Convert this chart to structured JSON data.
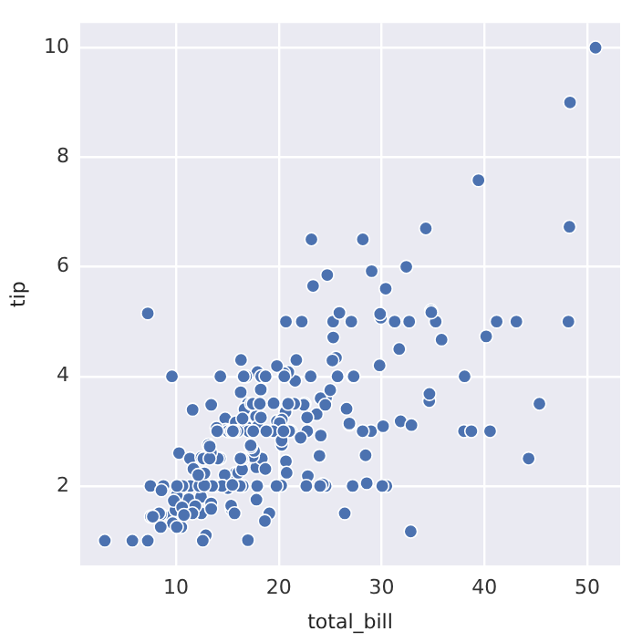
{
  "chart_data": {
    "type": "scatter",
    "xlabel": "total_bill",
    "ylabel": "tip",
    "marker": "circle",
    "grid": true,
    "legend": false,
    "xlim": [
      0.68,
      53.2
    ],
    "xticks": [
      10,
      20,
      30,
      40,
      50
    ],
    "ylim": [
      0.55,
      10.45
    ],
    "yticks": [
      2,
      4,
      6,
      8,
      10
    ],
    "series": [
      {
        "color": "#4c72b0",
        "x": [
          16.99,
          23.68,
          24.59,
          25.29,
          8.77,
          26.88,
          15.04,
          14.78,
          35.26,
          15.42,
          14.83,
          21.58,
          16.29,
          16.97,
          20.65,
          17.92,
          20.29,
          15.77,
          39.42,
          19.82,
          17.81,
          21.7,
          9.55,
          18.35,
          15.06,
          20.69,
          17.78,
          24.06,
          16.93,
          18.69,
          31.27,
          16.04,
          17.46,
          13.94,
          9.68,
          30.4,
          22.23,
          32.4,
          28.55,
          10.29,
          34.81,
          9.94,
          25.56,
          19.49,
          38.01,
          26.41,
          11.24,
          48.27,
          20.29,
          18.29,
          17.59,
          20.08,
          16.45,
          3.07,
          20.23,
          17.07,
          26.86,
          25.28,
          14.73,
          10.51,
          17.92,
          27.2,
          22.76,
          17.29,
          19.44,
          16.66,
          10.07,
          32.68,
          34.83,
          18.28,
          24.71,
          21.16,
          28.97,
          22.49,
          5.75,
          16.32,
          22.75,
          40.17,
          27.28,
          21.01,
          12.46,
          11.35,
          15.38,
          44.3,
          22.42,
          20.92,
          15.36,
          20.49,
          25.21,
          18.24,
          14.31,
          14.0,
          7.25,
          38.07,
          23.95,
          25.71,
          17.31,
          29.93,
          12.43,
          24.08,
          11.69,
          13.42,
          14.26,
          12.48,
          29.8,
          8.52,
          14.52,
          11.38,
          22.82,
          19.08,
          20.27,
          12.26,
          18.26,
          8.51,
          13.16,
          17.47,
          34.3,
          41.19,
          27.05,
          16.43,
          8.35,
          18.64,
          11.87,
          9.78,
          7.51,
          14.07,
          17.26,
          24.55,
          19.77,
          29.85,
          48.17,
          25.0,
          13.39,
          16.49,
          21.5,
          12.66,
          16.21,
          13.81,
          17.51,
          24.52,
          20.76,
          31.71,
          10.59,
          10.63,
          50.81,
          15.81,
          7.25,
          31.85,
          16.82,
          32.9,
          17.89,
          14.48,
          9.6,
          34.63,
          34.65,
          23.33,
          45.35,
          23.17,
          40.55,
          20.69,
          20.9,
          30.46,
          18.15,
          23.1,
          15.69,
          19.81,
          28.44,
          15.48,
          16.58,
          7.56,
          43.11,
          13.51,
          18.71,
          12.74,
          16.4,
          20.53,
          16.47,
          26.59,
          38.73,
          24.27,
          12.76,
          30.06,
          25.89,
          48.33,
          13.27,
          28.17,
          12.9,
          28.15,
          11.59,
          7.74,
          30.14,
          12.16,
          13.42,
          8.58,
          15.98,
          13.42,
          16.27,
          10.09,
          20.45,
          13.28,
          22.12,
          24.01,
          15.69,
          11.61,
          10.77,
          15.53,
          10.07,
          12.6,
          32.83,
          35.83,
          29.03,
          27.18,
          22.67,
          17.82,
          18.78
        ],
        "values": [
          1.01,
          3.31,
          3.61,
          4.71,
          2.0,
          3.12,
          1.96,
          3.23,
          5.0,
          1.57,
          3.02,
          3.92,
          3.71,
          3.5,
          3.35,
          4.08,
          2.75,
          2.23,
          7.58,
          3.18,
          2.34,
          4.3,
          1.45,
          2.5,
          3.0,
          2.45,
          3.27,
          3.6,
          3.07,
          2.31,
          5.0,
          2.24,
          2.54,
          3.06,
          1.32,
          5.6,
          5.0,
          6.0,
          2.05,
          2.6,
          5.2,
          1.56,
          4.34,
          3.51,
          3.0,
          1.5,
          1.76,
          6.73,
          3.21,
          3.76,
          2.64,
          3.15,
          2.47,
          1.0,
          2.01,
          3.0,
          3.14,
          5.0,
          2.2,
          1.25,
          3.08,
          4.0,
          3.0,
          2.71,
          3.0,
          3.4,
          1.83,
          5.0,
          5.17,
          4.0,
          5.85,
          3.0,
          3.0,
          3.5,
          1.0,
          4.3,
          3.25,
          4.73,
          4.0,
          3.0,
          1.5,
          2.5,
          3.0,
          2.5,
          3.48,
          4.08,
          1.64,
          4.06,
          4.29,
          3.76,
          4.0,
          3.0,
          1.0,
          4.0,
          2.55,
          4.0,
          3.5,
          5.07,
          1.8,
          2.92,
          2.31,
          1.68,
          2.5,
          2.52,
          4.2,
          1.48,
          2.0,
          2.0,
          2.18,
          1.5,
          2.83,
          2.0,
          3.25,
          1.25,
          2.75,
          3.5,
          6.7,
          5.0,
          5.0,
          2.3,
          1.5,
          1.36,
          1.63,
          1.73,
          2.0,
          2.5,
          2.74,
          2.0,
          2.0,
          5.14,
          5.0,
          3.75,
          2.61,
          2.0,
          3.5,
          2.5,
          2.0,
          2.0,
          3.0,
          3.48,
          2.24,
          4.5,
          1.61,
          2.0,
          10.0,
          3.16,
          5.15,
          3.18,
          4.0,
          3.11,
          2.0,
          2.0,
          4.0,
          3.55,
          3.68,
          5.65,
          3.5,
          6.5,
          3.0,
          5.0,
          3.5,
          2.0,
          3.5,
          4.0,
          1.5,
          4.19,
          2.56,
          2.02,
          4.0,
          1.44,
          5.0,
          2.0,
          4.0,
          2.01,
          2.5,
          4.0,
          3.23,
          3.41,
          3.0,
          2.03,
          2.23,
          2.0,
          5.16,
          9.0,
          2.5,
          6.5,
          1.1,
          3.0,
          1.5,
          1.44,
          3.09,
          2.2,
          3.48,
          1.92,
          3.0,
          1.58,
          2.5,
          2.0,
          3.0,
          2.72,
          2.88,
          2.0,
          3.0,
          3.39,
          1.47,
          3.0,
          1.25,
          1.0,
          1.17,
          4.67,
          5.92,
          2.0,
          2.0,
          1.75,
          3.0
        ]
      }
    ]
  }
}
